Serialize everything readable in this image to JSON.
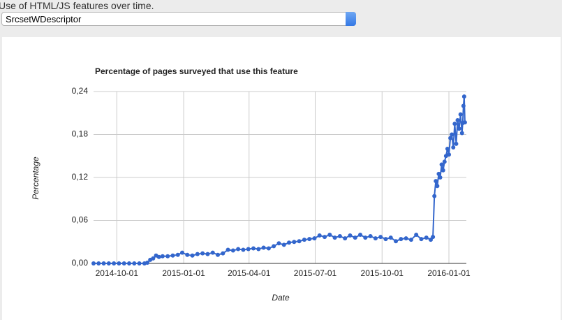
{
  "header": {
    "label": "Use of HTML/JS features over time."
  },
  "selector": {
    "value": "SrcsetWDescriptor"
  },
  "chart_data": {
    "type": "line",
    "title": "Percentage of pages surveyed that use this feature",
    "x_label": "Date",
    "y_label": "Percentage",
    "grid": true,
    "color": "#3366cc",
    "xlim": [
      "2014-08-30",
      "2016-01-25"
    ],
    "xticks": [
      "2014-10-01",
      "2015-01-01",
      "2015-04-01",
      "2015-07-01",
      "2015-10-01",
      "2016-01-01"
    ],
    "ylim": [
      0,
      0.24
    ],
    "yticks": [
      {
        "value": 0,
        "label": "0,00"
      },
      {
        "value": 0.06,
        "label": "0,06"
      },
      {
        "value": 0.12,
        "label": "0,12"
      },
      {
        "value": 0.18,
        "label": "0,18"
      },
      {
        "value": 0.24,
        "label": "0,24"
      }
    ],
    "x": [
      "2014-08-30",
      "2014-09-06",
      "2014-09-13",
      "2014-09-20",
      "2014-09-27",
      "2014-10-04",
      "2014-10-11",
      "2014-10-18",
      "2014-10-25",
      "2014-11-01",
      "2014-11-08",
      "2014-11-12",
      "2014-11-16",
      "2014-11-20",
      "2014-11-24",
      "2014-11-28",
      "2014-12-03",
      "2014-12-10",
      "2014-12-17",
      "2014-12-24",
      "2014-12-30",
      "2015-01-06",
      "2015-01-13",
      "2015-01-20",
      "2015-01-27",
      "2015-02-03",
      "2015-02-10",
      "2015-02-17",
      "2015-02-24",
      "2015-03-03",
      "2015-03-10",
      "2015-03-17",
      "2015-03-24",
      "2015-03-31",
      "2015-04-07",
      "2015-04-14",
      "2015-04-21",
      "2015-04-28",
      "2015-05-05",
      "2015-05-12",
      "2015-05-19",
      "2015-05-26",
      "2015-06-02",
      "2015-06-09",
      "2015-06-16",
      "2015-06-23",
      "2015-06-30",
      "2015-07-07",
      "2015-07-14",
      "2015-07-21",
      "2015-07-28",
      "2015-08-04",
      "2015-08-11",
      "2015-08-18",
      "2015-08-25",
      "2015-09-01",
      "2015-09-08",
      "2015-09-15",
      "2015-09-22",
      "2015-09-29",
      "2015-10-06",
      "2015-10-13",
      "2015-10-20",
      "2015-10-27",
      "2015-11-03",
      "2015-11-10",
      "2015-11-17",
      "2015-11-24",
      "2015-12-01",
      "2015-12-07",
      "2015-12-10",
      "2015-12-12",
      "2015-12-14",
      "2015-12-16",
      "2015-12-18",
      "2015-12-20",
      "2015-12-22",
      "2015-12-24",
      "2015-12-26",
      "2015-12-28",
      "2015-12-30",
      "2016-01-01",
      "2016-01-03",
      "2016-01-05",
      "2016-01-07",
      "2016-01-09",
      "2016-01-11",
      "2016-01-13",
      "2016-01-15",
      "2016-01-17",
      "2016-01-19",
      "2016-01-20",
      "2016-01-21",
      "2016-01-22",
      "2016-01-23"
    ],
    "values": [
      0,
      0,
      0,
      0,
      0,
      0,
      0,
      0,
      0,
      0,
      0,
      0.001,
      0.005,
      0.007,
      0.011,
      0.009,
      0.01,
      0.01,
      0.011,
      0.012,
      0.015,
      0.012,
      0.011,
      0.013,
      0.014,
      0.013,
      0.015,
      0.012,
      0.014,
      0.019,
      0.018,
      0.02,
      0.019,
      0.02,
      0.021,
      0.02,
      0.022,
      0.021,
      0.024,
      0.028,
      0.026,
      0.029,
      0.03,
      0.031,
      0.033,
      0.034,
      0.035,
      0.039,
      0.037,
      0.04,
      0.036,
      0.038,
      0.035,
      0.039,
      0.036,
      0.04,
      0.036,
      0.038,
      0.035,
      0.037,
      0.034,
      0.036,
      0.031,
      0.034,
      0.035,
      0.033,
      0.04,
      0.034,
      0.036,
      0.033,
      0.037,
      0.094,
      0.115,
      0.108,
      0.125,
      0.12,
      0.138,
      0.13,
      0.142,
      0.15,
      0.16,
      0.152,
      0.175,
      0.18,
      0.162,
      0.195,
      0.167,
      0.2,
      0.188,
      0.208,
      0.182,
      0.196,
      0.22,
      0.233,
      0.197
    ]
  }
}
